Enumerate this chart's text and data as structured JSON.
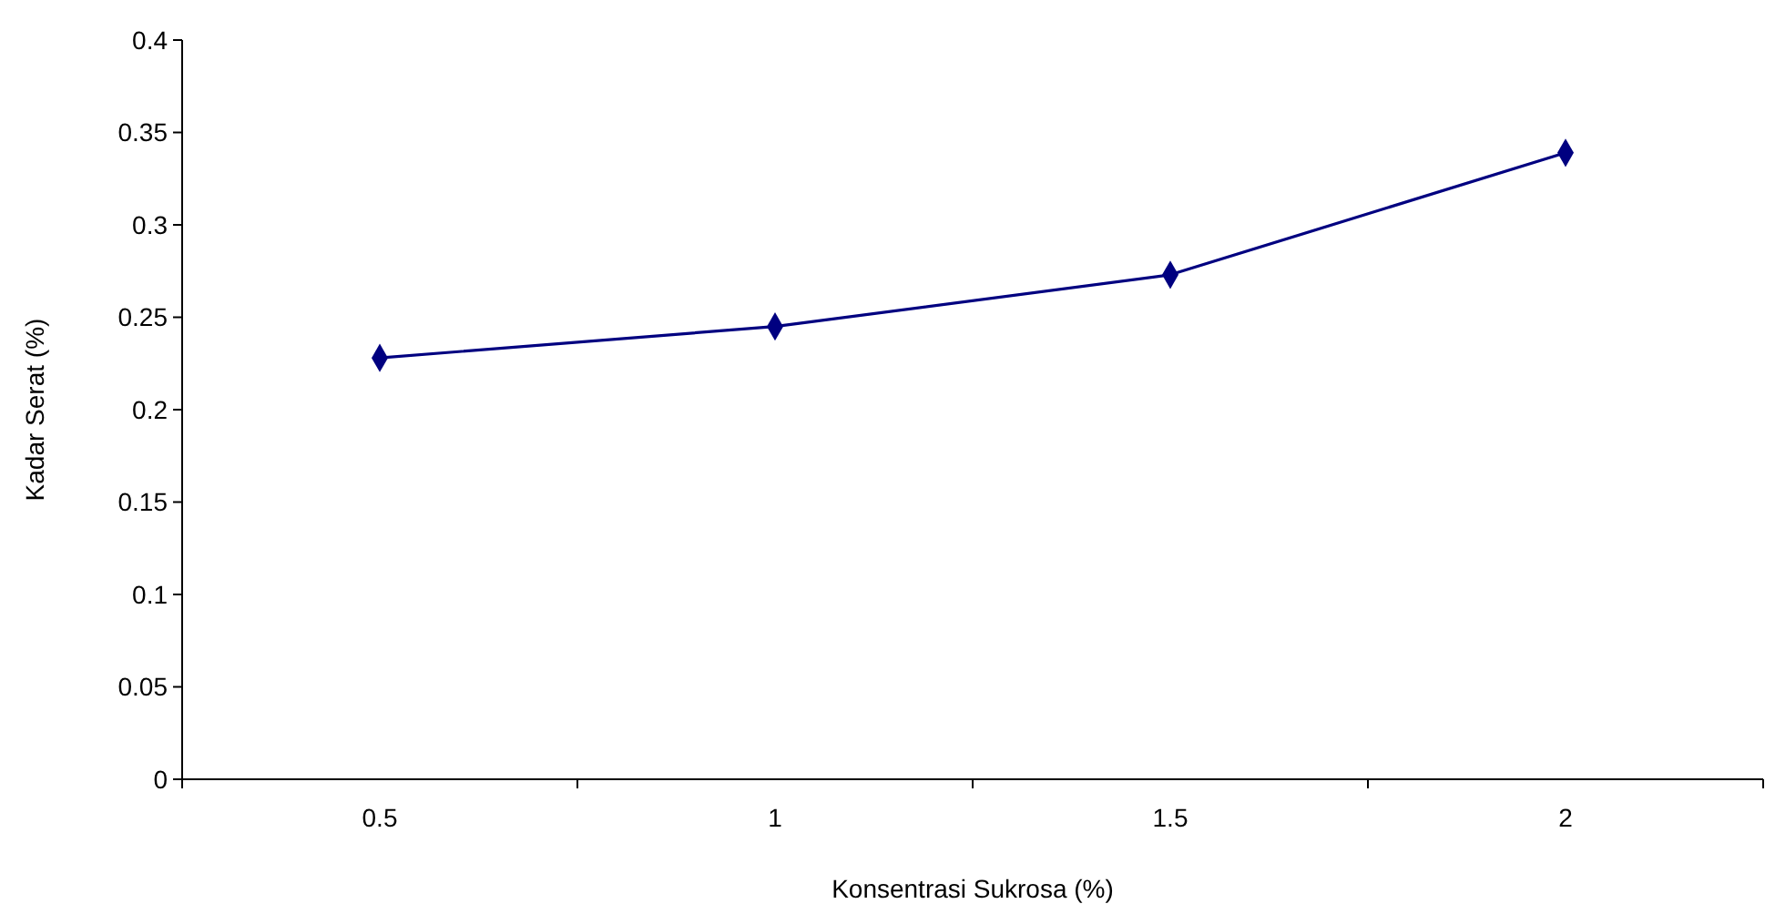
{
  "chart_data": {
    "type": "line",
    "xlabel": "Konsentrasi Sukrosa (%)",
    "ylabel": "Kadar Serat (%)",
    "categories": [
      "0.5",
      "1",
      "1.5",
      "2"
    ],
    "series": [
      {
        "color": "#000080",
        "values": [
          0.228,
          0.245,
          0.273,
          0.339
        ]
      }
    ],
    "ylim": [
      0,
      0.4
    ],
    "yticks": [
      0,
      0.05,
      0.1,
      0.15,
      0.2,
      0.25,
      0.3,
      0.35,
      0.4
    ],
    "marker": "diamond",
    "line_style": "solid"
  }
}
